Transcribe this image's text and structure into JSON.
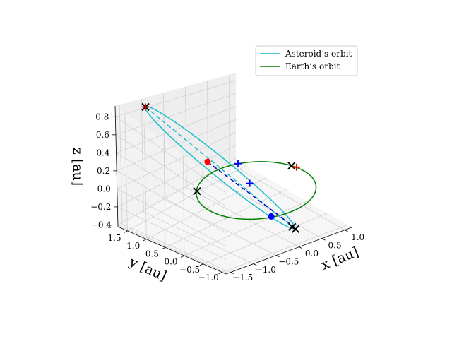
{
  "chart_data": {
    "type": "line",
    "projection": "3d",
    "xlabel": "x [au]",
    "ylabel": "y [au]",
    "zlabel": "z [au]",
    "xlim": [
      -1.6,
      1.15
    ],
    "ylim": [
      -1.1,
      1.75
    ],
    "zlim": [
      -0.42,
      0.92
    ],
    "xticks": [
      -1.5,
      -1.0,
      -0.5,
      0.0,
      0.5,
      1.0
    ],
    "xtick_labels": [
      "−1.5",
      "−1.0",
      "−0.5",
      "0.0",
      "0.5",
      "1.0"
    ],
    "yticks": [
      1.5,
      1.0,
      0.5,
      0.0,
      -0.5,
      -1.0
    ],
    "ytick_labels": [
      "1.5",
      "1.0",
      "0.5",
      "0.0",
      "−0.5",
      "−1.0"
    ],
    "zticks": [
      0.8,
      0.6,
      0.4,
      0.2,
      0.0,
      -0.2,
      -0.4
    ],
    "ztick_labels": [
      "0.8",
      "0.6",
      "0.4",
      "0.2",
      "0.0",
      "−0.2",
      "−0.4"
    ],
    "grid": true,
    "legend_position": "top-right",
    "series": [
      {
        "name": "Asteroid’s orbit",
        "color": "#17becf",
        "style": "solid",
        "orbit": {
          "a": 1.25,
          "e": 0.8,
          "i_deg": 48,
          "Omega_deg": 210,
          "omega_deg": 270,
          "focus": [
            0,
            0,
            0
          ]
        }
      },
      {
        "name": "Earth’s orbit",
        "color": "#008000",
        "style": "solid",
        "orbit": {
          "a": 1.0,
          "e": 0.0,
          "i_deg": 0,
          "focus": [
            0,
            0,
            0
          ]
        }
      }
    ],
    "extra_lines": [
      {
        "color": "#17becf",
        "style": "dashed",
        "from": [
          -1.0,
          1.65,
          0.85
        ],
        "to": [
          0.15,
          -0.75,
          -0.3
        ]
      },
      {
        "color": "#0000cc",
        "style": "dashed",
        "from": [
          -0.5,
          0.65,
          0.33
        ],
        "to": [
          0.15,
          -0.72,
          -0.28
        ]
      }
    ],
    "markers": [
      {
        "symbol": "x",
        "color": "#000000",
        "point": [
          -1.0,
          1.65,
          0.85
        ]
      },
      {
        "symbol": "+",
        "color": "#ff0000",
        "point": [
          -1.0,
          1.65,
          0.85
        ]
      },
      {
        "symbol": "x",
        "color": "#000000",
        "point": [
          0.15,
          -0.75,
          -0.3
        ]
      },
      {
        "symbol": "x",
        "color": "#000000",
        "point": [
          0.18,
          -0.8,
          -0.32
        ]
      },
      {
        "symbol": "x",
        "color": "#000000",
        "point": [
          -0.7,
          0.7,
          0.0
        ]
      },
      {
        "symbol": "x",
        "color": "#000000",
        "point": [
          0.98,
          0.2,
          0.0
        ]
      },
      {
        "symbol": "+",
        "color": "#ff0000",
        "point": [
          1.0,
          0.1,
          0.0
        ]
      },
      {
        "symbol": "circle",
        "color": "#ff0000",
        "point": [
          -0.5,
          0.65,
          0.33
        ]
      },
      {
        "symbol": "circle",
        "color": "#0000ff",
        "point": [
          -0.05,
          -0.45,
          -0.2
        ]
      },
      {
        "symbol": "+",
        "color": "#0000ff",
        "point": [
          0.05,
          0.5,
          0.2
        ]
      },
      {
        "symbol": "+",
        "color": "#0000ff",
        "point": [
          0.0,
          0.15,
          0.05
        ]
      }
    ]
  }
}
